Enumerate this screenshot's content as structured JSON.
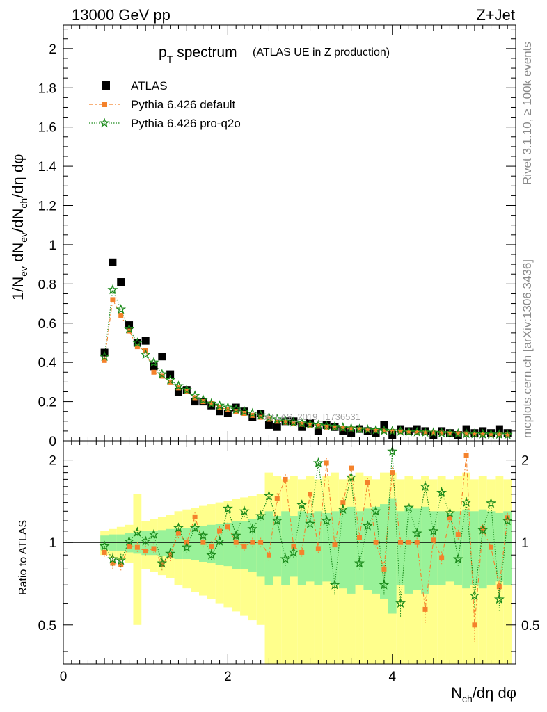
{
  "header": {
    "energy_label": "13000 GeV pp",
    "process_label": "Z+Jet",
    "rivet_label": "Rivet 3.1.10, ≥ 100k events",
    "mcplots_label": "mcplots.cern.ch [arXiv:1306.3436]",
    "watermark": "ATLAS_2019_I1736531"
  },
  "chart_data": [
    {
      "type": "scatter",
      "panel": "main",
      "title": "p",
      "title_sub": "T",
      "title_main": "spectrum",
      "subtitle": "(ATLAS UE in Z production)",
      "ylabel": "1/N_ev dN_ev/dN_ch/dη dφ",
      "xlim": [
        0,
        5.5
      ],
      "ylim": [
        0,
        2.12
      ],
      "y_ticks": [
        0,
        0.2,
        0.4,
        0.6,
        0.8,
        1,
        1.2,
        1.4,
        1.6,
        1.8,
        2
      ],
      "y_tick_labels": [
        "0",
        "0.2",
        "0.4",
        "0.6",
        "0.8",
        "1",
        "1.2",
        "1.4",
        "1.6",
        "1.8",
        "2"
      ],
      "legend": [
        {
          "name": "ATLAS",
          "color": "#000000",
          "marker": "square"
        },
        {
          "name": "Pythia 6.426 default",
          "color": "#f4822b",
          "marker": "square-dashed"
        },
        {
          "name": "Pythia 6.426 pro-q2o",
          "color": "#1a8a1a",
          "marker": "star-dotted"
        }
      ],
      "x": [
        0.5,
        0.6,
        0.7,
        0.8,
        0.9,
        1.0,
        1.1,
        1.2,
        1.3,
        1.4,
        1.5,
        1.6,
        1.7,
        1.8,
        1.9,
        2.0,
        2.1,
        2.2,
        2.3,
        2.4,
        2.5,
        2.6,
        2.7,
        2.8,
        2.9,
        3.0,
        3.1,
        3.2,
        3.3,
        3.4,
        3.5,
        3.6,
        3.7,
        3.8,
        3.9,
        4.0,
        4.1,
        4.2,
        4.3,
        4.4,
        4.5,
        4.6,
        4.7,
        4.8,
        4.9,
        5.0,
        5.1,
        5.2,
        5.3,
        5.4
      ],
      "series": [
        {
          "name": "ATLAS",
          "values": [
            0.45,
            0.91,
            0.81,
            0.59,
            0.5,
            0.51,
            0.38,
            0.43,
            0.34,
            0.25,
            0.26,
            0.2,
            0.2,
            0.18,
            0.15,
            0.14,
            0.17,
            0.15,
            0.12,
            0.14,
            0.08,
            0.07,
            0.1,
            0.1,
            0.07,
            0.09,
            0.05,
            0.08,
            0.07,
            0.05,
            0.04,
            0.06,
            0.05,
            0.04,
            0.08,
            0.03,
            0.06,
            0.05,
            0.06,
            0.05,
            0.03,
            0.05,
            0.04,
            0.03,
            0.06,
            0.04,
            0.05,
            0.04,
            0.06,
            0.04
          ]
        },
        {
          "name": "Pythia 6.426 default",
          "values": [
            0.41,
            0.72,
            0.64,
            0.56,
            0.48,
            0.46,
            0.35,
            0.33,
            0.3,
            0.27,
            0.25,
            0.22,
            0.2,
            0.19,
            0.17,
            0.16,
            0.15,
            0.14,
            0.13,
            0.12,
            0.11,
            0.1,
            0.095,
            0.09,
            0.085,
            0.08,
            0.075,
            0.07,
            0.067,
            0.064,
            0.061,
            0.058,
            0.055,
            0.053,
            0.05,
            0.048,
            0.046,
            0.044,
            0.043,
            0.041,
            0.04,
            0.039,
            0.037,
            0.036,
            0.035,
            0.034,
            0.033,
            0.032,
            0.031,
            0.03
          ]
        },
        {
          "name": "Pythia 6.426 pro-q2o",
          "values": [
            0.43,
            0.77,
            0.67,
            0.57,
            0.5,
            0.44,
            0.4,
            0.34,
            0.31,
            0.28,
            0.26,
            0.23,
            0.21,
            0.19,
            0.18,
            0.17,
            0.16,
            0.15,
            0.14,
            0.13,
            0.12,
            0.11,
            0.1,
            0.095,
            0.09,
            0.085,
            0.08,
            0.076,
            0.072,
            0.068,
            0.064,
            0.06,
            0.057,
            0.055,
            0.052,
            0.05,
            0.048,
            0.046,
            0.045,
            0.043,
            0.042,
            0.04,
            0.039,
            0.037,
            0.036,
            0.035,
            0.034,
            0.033,
            0.032,
            0.031
          ]
        }
      ]
    },
    {
      "type": "scatter",
      "panel": "ratio",
      "ylabel": "Ratio to ATLAS",
      "xlabel": "N_ch/dη dφ",
      "xlim": [
        0,
        5.5
      ],
      "ylim": [
        0.36,
        2.35
      ],
      "y_scale": "log",
      "x_ticks": [
        0,
        2,
        4
      ],
      "x_tick_labels": [
        "0",
        "2",
        "4"
      ],
      "y_ticks": [
        0.5,
        1,
        2
      ],
      "y_tick_labels": [
        "0.5",
        "1",
        "2"
      ],
      "x": [
        0.5,
        0.6,
        0.7,
        0.8,
        0.9,
        1.0,
        1.1,
        1.2,
        1.3,
        1.4,
        1.5,
        1.6,
        1.7,
        1.8,
        1.9,
        2.0,
        2.1,
        2.2,
        2.3,
        2.4,
        2.5,
        2.6,
        2.7,
        2.8,
        2.9,
        3.0,
        3.1,
        3.2,
        3.3,
        3.4,
        3.5,
        3.6,
        3.7,
        3.8,
        3.9,
        4.0,
        4.1,
        4.2,
        4.3,
        4.4,
        4.5,
        4.6,
        4.7,
        4.8,
        4.9,
        5.0,
        5.1,
        5.2,
        5.3,
        5.4
      ],
      "band_stat_halfwidth": [
        0.06,
        0.07,
        0.07,
        0.08,
        0.09,
        0.1,
        0.1,
        0.11,
        0.12,
        0.13,
        0.13,
        0.14,
        0.15,
        0.16,
        0.17,
        0.18,
        0.2,
        0.2,
        0.22,
        0.25,
        0.3,
        0.25,
        0.3,
        0.25,
        0.3,
        0.28,
        0.3,
        0.28,
        0.3,
        0.32,
        0.35,
        0.3,
        0.33,
        0.35,
        0.38,
        0.45,
        0.3,
        0.35,
        0.33,
        0.35,
        0.3,
        0.3,
        0.28,
        0.3,
        0.32,
        0.3,
        0.32,
        0.3,
        0.28,
        0.3
      ],
      "band_total_halfwidth": [
        0.1,
        0.12,
        0.14,
        0.16,
        0.5,
        0.2,
        0.22,
        0.24,
        0.26,
        0.3,
        0.32,
        0.34,
        0.36,
        0.38,
        0.4,
        0.42,
        0.44,
        0.46,
        0.48,
        0.5,
        0.8,
        0.75,
        0.7,
        0.75,
        0.7,
        0.75,
        0.7,
        0.75,
        0.8,
        0.7,
        0.75,
        0.8,
        0.75,
        0.7,
        0.8,
        0.8,
        0.7,
        0.75,
        0.7,
        0.75,
        0.7,
        0.75,
        0.7,
        0.75,
        0.8,
        0.7,
        0.75,
        0.7,
        0.75,
        0.7
      ],
      "series": [
        {
          "name": "Pythia 6.426 default",
          "values": [
            0.92,
            0.84,
            0.83,
            0.97,
            0.96,
            0.93,
            0.95,
            0.83,
            0.9,
            1.08,
            1.0,
            1.24,
            1.0,
            0.97,
            1.1,
            1.14,
            1.0,
            0.97,
            1.0,
            1.0,
            0.9,
            1.45,
            1.7,
            0.97,
            0.92,
            1.5,
            0.95,
            1.95,
            0.98,
            1.4,
            1.87,
            1.04,
            1.65,
            1.0,
            0.8,
            1.8,
            1.0,
            1.0,
            1.0,
            0.57,
            1.02,
            0.88,
            1.23,
            1.07,
            2.08,
            0.5,
            1.12,
            0.96,
            0.69,
            1.23
          ]
        },
        {
          "name": "Pythia 6.426 pro-q2o",
          "values": [
            0.97,
            0.87,
            0.86,
            1.01,
            1.09,
            1.01,
            1.07,
            0.84,
            0.91,
            1.13,
            0.96,
            1.13,
            1.06,
            0.9,
            1.01,
            1.33,
            1.06,
            1.3,
            1.12,
            1.25,
            1.48,
            1.2,
            0.87,
            0.92,
            1.37,
            1.17,
            1.95,
            1.2,
            0.7,
            1.32,
            1.73,
            0.84,
            1.15,
            1.3,
            0.7,
            2.15,
            0.6,
            1.34,
            1.08,
            1.6,
            1.1,
            1.52,
            1.28,
            0.87,
            1.4,
            0.64,
            1.11,
            1.39,
            0.62,
            1.2
          ]
        }
      ]
    }
  ]
}
